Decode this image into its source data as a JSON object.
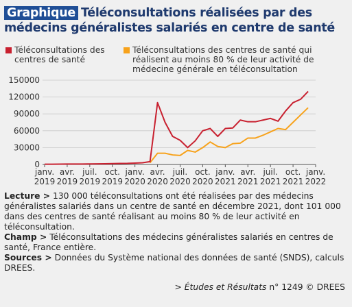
{
  "header": {
    "badge": "Graphique",
    "title": "Téléconsultations réalisées par des médecins généralistes salariés en centre de santé"
  },
  "chart_data": {
    "type": "line",
    "x": [
      "2019-01",
      "2019-02",
      "2019-03",
      "2019-04",
      "2019-05",
      "2019-06",
      "2019-07",
      "2019-08",
      "2019-09",
      "2019-10",
      "2019-11",
      "2019-12",
      "2020-01",
      "2020-02",
      "2020-03",
      "2020-04",
      "2020-05",
      "2020-06",
      "2020-07",
      "2020-08",
      "2020-09",
      "2020-10",
      "2020-11",
      "2020-12",
      "2021-01",
      "2021-02",
      "2021-03",
      "2021-04",
      "2021-05",
      "2021-06",
      "2021-07",
      "2021-08",
      "2021-09",
      "2021-10",
      "2021-11",
      "2021-12"
    ],
    "series": [
      {
        "name": "Téléconsultations des centres de santé",
        "color": "#c8202f",
        "values": [
          500,
          500,
          600,
          700,
          700,
          800,
          900,
          1000,
          1200,
          1500,
          1800,
          2000,
          2500,
          3000,
          5000,
          110000,
          75000,
          50000,
          43000,
          30000,
          42000,
          60000,
          64000,
          50000,
          64000,
          65000,
          79000,
          76000,
          76000,
          79000,
          82000,
          77000,
          95000,
          110000,
          116000,
          130000
        ]
      },
      {
        "name": "Téléconsultations des centres de santé qui réalisent au moins 80 % de leur activité de médecine générale en téléconsultation",
        "color": "#f7a21b",
        "values": [
          null,
          null,
          null,
          null,
          null,
          null,
          null,
          null,
          null,
          null,
          null,
          null,
          null,
          null,
          3000,
          20000,
          20000,
          17000,
          16000,
          25000,
          22000,
          30000,
          40000,
          32000,
          30000,
          37000,
          38000,
          47000,
          47000,
          52000,
          58000,
          64000,
          62000,
          75000,
          88000,
          101000
        ]
      }
    ],
    "xticks": [
      {
        "value": "2019-01",
        "label": [
          "janv.",
          "2019"
        ]
      },
      {
        "value": "2019-04",
        "label": [
          "avr.",
          "2019"
        ]
      },
      {
        "value": "2019-07",
        "label": [
          "juil.",
          "2019"
        ]
      },
      {
        "value": "2019-10",
        "label": [
          "oct.",
          "2019"
        ]
      },
      {
        "value": "2020-01",
        "label": [
          "janv.",
          "2020"
        ]
      },
      {
        "value": "2020-04",
        "label": [
          "avr.",
          "2020"
        ]
      },
      {
        "value": "2020-07",
        "label": [
          "juil.",
          "2020"
        ]
      },
      {
        "value": "2020-10",
        "label": [
          "oct.",
          "2020"
        ]
      },
      {
        "value": "2021-01",
        "label": [
          "janv.",
          "2021"
        ]
      },
      {
        "value": "2021-04",
        "label": [
          "avr.",
          "2021"
        ]
      },
      {
        "value": "2021-07",
        "label": [
          "juil.",
          "2021"
        ]
      },
      {
        "value": "2021-10",
        "label": [
          "oct.",
          "2021"
        ]
      },
      {
        "value": "2022-01",
        "label": [
          "janv.",
          "2022"
        ]
      }
    ],
    "ylim": [
      0,
      150000
    ],
    "yticks": [
      0,
      30000,
      60000,
      90000,
      120000,
      150000
    ],
    "grid": true
  },
  "notes": [
    {
      "label": "Lecture >",
      "text": "130 000 téléconsultations ont été réalisées par des médecins généralistes salariés dans un centre de santé en décembre 2021, dont 101 000 dans des centres de santé réalisant au moins 80 % de leur activité en téléconsultation."
    },
    {
      "label": "Champ >",
      "text": "Téléconsultations des médecins généralistes salariés en centres de santé, France entière."
    },
    {
      "label": "Sources >",
      "text": "Données du Système national des données de santé (SNDS), calculs DREES."
    }
  ],
  "source": {
    "pre": ">",
    "italic": "Études et Résultats",
    "post": "n° 1249 © DREES"
  }
}
